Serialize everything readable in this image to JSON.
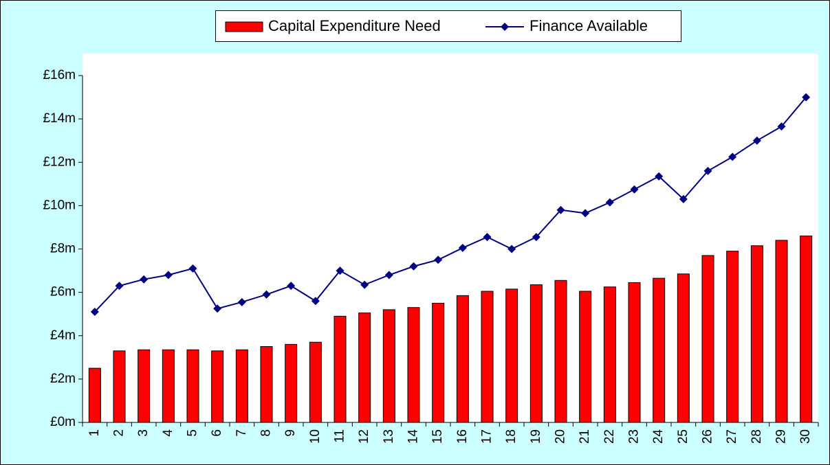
{
  "chart_data": {
    "type": "bar-line",
    "categories": [
      "1",
      "2",
      "3",
      "4",
      "5",
      "6",
      "7",
      "8",
      "9",
      "10",
      "11",
      "12",
      "13",
      "14",
      "15",
      "16",
      "17",
      "18",
      "19",
      "20",
      "21",
      "22",
      "23",
      "24",
      "25",
      "26",
      "27",
      "28",
      "29",
      "30"
    ],
    "series": [
      {
        "name": "Capital Expenditure Need",
        "type": "bar",
        "color": "#ff0000",
        "values": [
          2.5,
          3.3,
          3.35,
          3.35,
          3.35,
          3.3,
          3.35,
          3.5,
          3.6,
          3.7,
          4.9,
          5.05,
          5.2,
          5.3,
          5.5,
          5.85,
          6.05,
          6.15,
          6.35,
          6.55,
          6.05,
          6.25,
          6.45,
          6.65,
          6.85,
          7.7,
          7.9,
          8.15,
          8.4,
          8.6
        ]
      },
      {
        "name": "Finance Available",
        "type": "line",
        "color": "#000080",
        "values": [
          5.1,
          6.3,
          6.6,
          6.8,
          7.1,
          5.25,
          5.55,
          5.9,
          6.3,
          5.6,
          7.0,
          6.35,
          6.8,
          7.2,
          7.5,
          8.05,
          8.55,
          8.0,
          8.55,
          9.8,
          9.65,
          10.15,
          10.75,
          11.35,
          10.3,
          11.6,
          12.25,
          13.0,
          13.65,
          15.0
        ]
      }
    ],
    "ylim": [
      0,
      16
    ],
    "yticks": [
      {
        "value": 0,
        "label": "£0m"
      },
      {
        "value": 2,
        "label": "£2m"
      },
      {
        "value": 4,
        "label": "£4m"
      },
      {
        "value": 6,
        "label": "£6m"
      },
      {
        "value": 8,
        "label": "£8m"
      },
      {
        "value": 10,
        "label": "£10m"
      },
      {
        "value": 12,
        "label": "£12m"
      },
      {
        "value": 14,
        "label": "£14m"
      },
      {
        "value": 16,
        "label": "£16m"
      }
    ],
    "legend": "top"
  }
}
